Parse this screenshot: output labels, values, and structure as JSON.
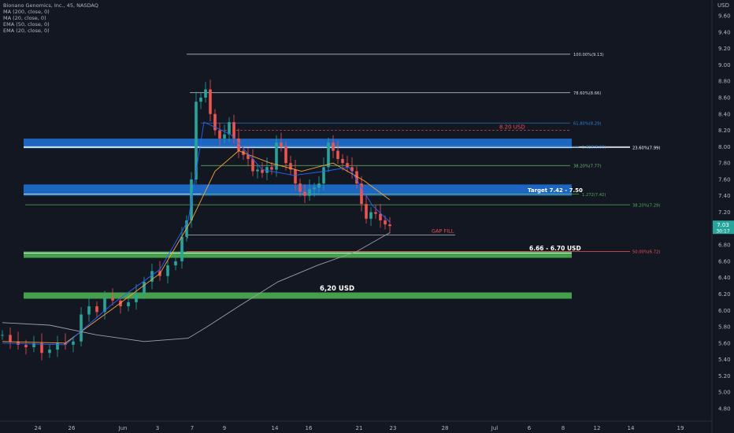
{
  "header": {
    "symbol": "Bionano Genomics, Inc., 45, NASDAQ",
    "indicators": [
      "MA (200, close, 0)",
      "MA (20, close, 0)",
      "EMA (50, close, 0)",
      "EMA (20, close, 0)"
    ],
    "currency": "USD"
  },
  "colors": {
    "background": "#131722",
    "up": "#26a69a",
    "down": "#ef5350",
    "ema20": "#2962ff",
    "ema50": "#f7a23b",
    "ma200": "#9aa0a6",
    "zone_blue": "#1e6fd0",
    "zone_green": "#4caf50",
    "price_tag": "#26a69a"
  },
  "price_tag": {
    "price": "7.03",
    "countdown": "30:17"
  },
  "chart_data": {
    "type": "candlestick",
    "ylim": [
      4.72,
      9.74
    ],
    "yticks": [
      "4.80",
      "5.00",
      "5.20",
      "5.40",
      "5.60",
      "5.80",
      "6.00",
      "6.20",
      "6.40",
      "6.60",
      "6.80",
      "7.00",
      "7.20",
      "7.40",
      "7.60",
      "7.80",
      "8.00",
      "8.20",
      "8.40",
      "8.60",
      "8.80",
      "9.00",
      "9.20",
      "9.40",
      "9.60"
    ],
    "xticks": [
      "24",
      "26",
      "Jun",
      "3",
      "7",
      "9",
      "14",
      "16",
      "21",
      "23",
      "28",
      "Jul",
      "6",
      "8",
      "12",
      "14",
      "19"
    ],
    "series_names": [
      "MA (200, close, 0)",
      "MA (20, close, 0)",
      "EMA (50, close, 0)",
      "EMA (20, close, 0)"
    ],
    "fib_levels": [
      {
        "label": "100.00%(9.13)",
        "value": 9.13
      },
      {
        "label": "78.60%(8.66)",
        "value": 8.66
      },
      {
        "label": "61.80%(8.29)",
        "value": 8.29
      },
      {
        "label": "1.618(8.00)",
        "value": 8.0
      },
      {
        "label": "23.60%(7.99)",
        "value": 7.99
      },
      {
        "label": "38.20%(7.77)",
        "value": 7.77
      },
      {
        "label": "1.272(7.42)",
        "value": 7.42
      },
      {
        "label": "38.20%(7.29)",
        "value": 7.29
      },
      {
        "label": "50.00%(6.72)",
        "value": 6.72
      }
    ],
    "zones": [
      {
        "color": "blue",
        "low": 8.0,
        "high": 8.06,
        "label": ""
      },
      {
        "color": "blue",
        "low": 7.42,
        "high": 7.5,
        "label": "Target 7.42 - 7.50"
      },
      {
        "color": "green",
        "low": 6.66,
        "high": 6.7,
        "label": "6.66 - 6.70 USD"
      },
      {
        "color": "green",
        "low": 6.17,
        "high": 6.2,
        "label": "6,20 USD"
      }
    ],
    "annotations": [
      {
        "text": "8.20 USD",
        "value": 8.2
      },
      {
        "text": "GAP FILL",
        "value": 6.92
      }
    ],
    "last_price": 7.03
  }
}
